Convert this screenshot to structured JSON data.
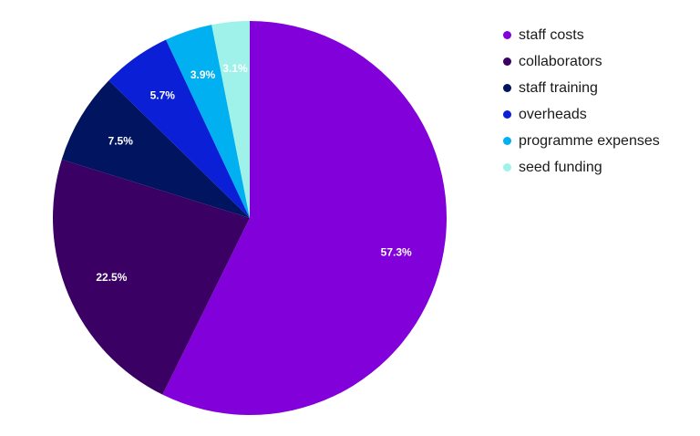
{
  "chart_data": {
    "type": "pie",
    "title": "",
    "categories": [
      "staff costs",
      "collaborators",
      "staff training",
      "overheads",
      "programme expenses",
      "seed funding"
    ],
    "values": [
      57.3,
      22.5,
      7.5,
      5.7,
      3.9,
      3.1
    ],
    "labels": [
      "57.3%",
      "22.5%",
      "7.5%",
      "5.7%",
      "3.9%",
      "3.1%"
    ],
    "colors": [
      "#8200da",
      "#3a0064",
      "#00145f",
      "#0a1fd6",
      "#00b0f0",
      "#9ef2ea"
    ],
    "start_angle_deg": 0,
    "direction": "clockwise",
    "legend_position": "right"
  }
}
